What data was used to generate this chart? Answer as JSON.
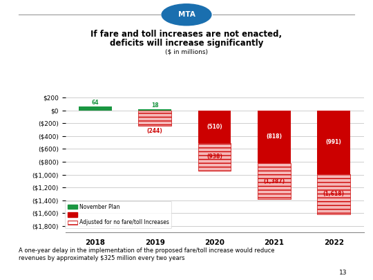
{
  "years": [
    "2018",
    "2019",
    "2020",
    "2021",
    "2022"
  ],
  "nov_plan": [
    64,
    18,
    -510,
    -818,
    -991
  ],
  "adjusted": [
    0,
    -244,
    -938,
    -1387,
    -1618
  ],
  "nov_plan_labels": [
    "64",
    "18",
    "(510)",
    "(818)",
    "(991)"
  ],
  "adjusted_labels": [
    "",
    "(244)",
    "(938)",
    "(1,387)",
    "(1,618)"
  ],
  "nov_plan_color": "#cc0000",
  "nov_plan_color_pos": "#1a9641",
  "title_line1": "If fare and toll increases are not enacted,",
  "title_line2": "deficits will increase significantly",
  "subtitle": "($ in millions)",
  "ylabel_ticks": [
    200,
    0,
    -200,
    -400,
    -600,
    -800,
    -1000,
    -1200,
    -1400,
    -1600,
    -1800
  ],
  "ylim": [
    -1900,
    280
  ],
  "footnote": "A one-year delay in the implementation of the proposed fare/toll increase would reduce\nrevenues by approximately $325 million every two years",
  "page_number": "13",
  "background_color": "#ffffff",
  "legend_nov": "November Plan",
  "legend_adj": "Adjusted for no fare/toll Increases",
  "bar_width": 0.55,
  "hatch_pattern": "xxx",
  "logo_color": "#1a6faf",
  "grid_color": "#bbbbbb",
  "spine_color": "#888888"
}
